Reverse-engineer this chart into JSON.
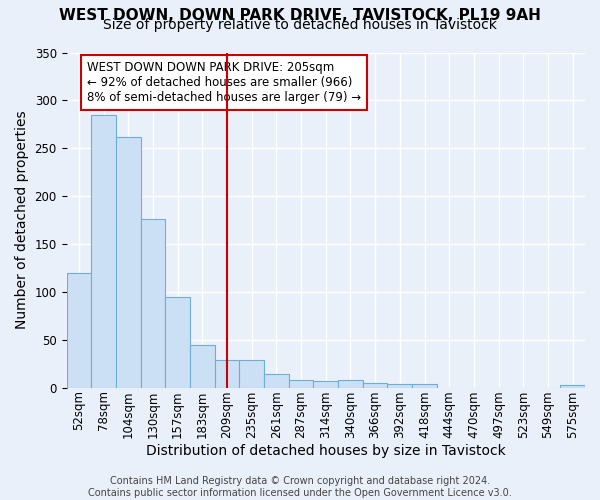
{
  "title": "WEST DOWN, DOWN PARK DRIVE, TAVISTOCK, PL19 9AH",
  "subtitle": "Size of property relative to detached houses in Tavistock",
  "xlabel": "Distribution of detached houses by size in Tavistock",
  "ylabel": "Number of detached properties",
  "footer_line1": "Contains HM Land Registry data © Crown copyright and database right 2024.",
  "footer_line2": "Contains public sector information licensed under the Open Government Licence v3.0.",
  "bar_labels": [
    "52sqm",
    "78sqm",
    "104sqm",
    "130sqm",
    "157sqm",
    "183sqm",
    "209sqm",
    "235sqm",
    "261sqm",
    "287sqm",
    "314sqm",
    "340sqm",
    "366sqm",
    "392sqm",
    "418sqm",
    "444sqm",
    "470sqm",
    "497sqm",
    "523sqm",
    "549sqm",
    "575sqm"
  ],
  "bar_values": [
    120,
    285,
    262,
    176,
    95,
    44,
    29,
    29,
    14,
    8,
    7,
    8,
    5,
    4,
    4,
    0,
    0,
    0,
    0,
    0,
    3
  ],
  "bar_color": "#cce0f5",
  "bar_edge_color": "#6baed6",
  "vline_x": 6.0,
  "vline_color": "#cc0000",
  "annotation_text": "WEST DOWN DOWN PARK DRIVE: 205sqm\n← 92% of detached houses are smaller (966)\n8% of semi-detached houses are larger (79) →",
  "annotation_box_color": "#ffffff",
  "annotation_box_edge": "#cc0000",
  "ylim": [
    0,
    350
  ],
  "yticks": [
    0,
    50,
    100,
    150,
    200,
    250,
    300,
    350
  ],
  "bg_color": "#eaf0fa",
  "grid_color": "#ffffff",
  "title_fontsize": 11,
  "subtitle_fontsize": 10,
  "axis_label_fontsize": 10,
  "tick_fontsize": 8.5,
  "footer_fontsize": 7
}
